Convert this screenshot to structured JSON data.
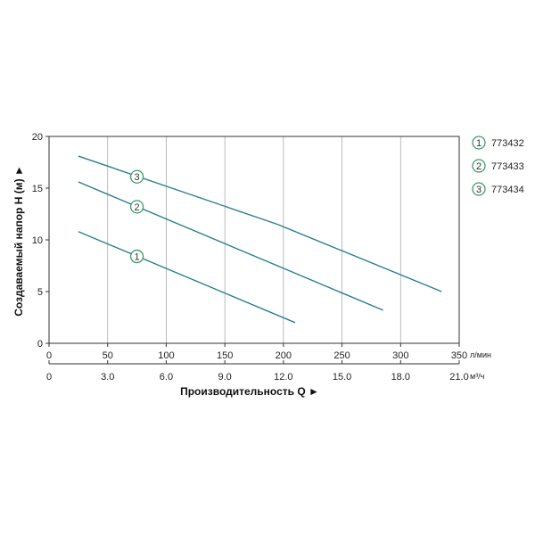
{
  "chart_data": {
    "type": "line",
    "xlabel": "Производительность Q ►",
    "ylabel": "Создаваемый напор H (м) ►",
    "x_unit_primary": "л/мин",
    "x_unit_secondary": "м³/ч",
    "xlim": [
      0,
      350
    ],
    "ylim": [
      0,
      20
    ],
    "x_ticks": [
      0,
      50,
      100,
      150,
      200,
      250,
      300,
      350
    ],
    "x_tick_labels": [
      "0",
      "50",
      "100",
      "150",
      "200",
      "250",
      "300",
      "350"
    ],
    "x2_ticks": [
      0,
      50,
      100,
      150,
      200,
      250,
      300,
      350
    ],
    "x2_tick_labels": [
      "0",
      "3.0",
      "6.0",
      "9.0",
      "12.0",
      "15.0",
      "18.0",
      "21.0"
    ],
    "y_ticks": [
      0,
      5,
      10,
      15,
      20
    ],
    "y_tick_labels": [
      "0",
      "5",
      "10",
      "15",
      "20"
    ],
    "grid": "vertical",
    "legend_position": "right",
    "colors": {
      "line": "#2a7f8f",
      "grid": "#aaaaaa",
      "frame": "#333333",
      "marker": "#3f9a6f"
    },
    "series": [
      {
        "name": "773432",
        "marker": "1",
        "x": [
          25,
          210
        ],
        "y": [
          10.8,
          2.0
        ],
        "marker_at": [
          75,
          8.4
        ]
      },
      {
        "name": "773433",
        "marker": "2",
        "x": [
          25,
          285
        ],
        "y": [
          15.6,
          3.2
        ],
        "marker_at": [
          75,
          13.2
        ]
      },
      {
        "name": "773434",
        "marker": "3",
        "x": [
          25,
          195,
          335
        ],
        "y": [
          18.1,
          11.5,
          5.0
        ],
        "marker_at": [
          75,
          16.1
        ]
      }
    ]
  }
}
